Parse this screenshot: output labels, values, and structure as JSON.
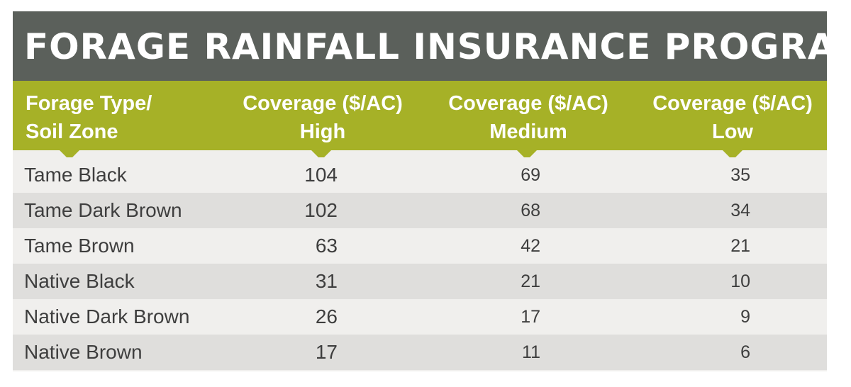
{
  "chart_data": {
    "type": "table",
    "title": "FORAGE RAINFALL INSURANCE PROGRAM",
    "columns": [
      [
        "Forage Type/",
        "Soil Zone"
      ],
      [
        "Coverage ($/AC)",
        "High"
      ],
      [
        "Coverage ($/AC)",
        "Medium"
      ],
      [
        "Coverage ($/AC)",
        "Low"
      ]
    ],
    "rows": [
      {
        "type": "Tame Black",
        "high": "104",
        "medium": "69",
        "low": "35"
      },
      {
        "type": "Tame Dark Brown",
        "high": "102",
        "medium": "68",
        "low": "34"
      },
      {
        "type": "Tame Brown",
        "high": "63",
        "medium": "42",
        "low": "21"
      },
      {
        "type": "Native Black",
        "high": "31",
        "medium": "21",
        "low": "10"
      },
      {
        "type": "Native Dark Brown",
        "high": "26",
        "medium": "17",
        "low": "9"
      },
      {
        "type": "Native Brown",
        "high": "17",
        "medium": "11",
        "low": "6"
      }
    ]
  },
  "colors": {
    "title_bar": "#5b605b",
    "header_bar": "#a6b127",
    "row_light": "#f0efed",
    "row_dark": "#dfdedc",
    "text": "#3e3e3e"
  }
}
